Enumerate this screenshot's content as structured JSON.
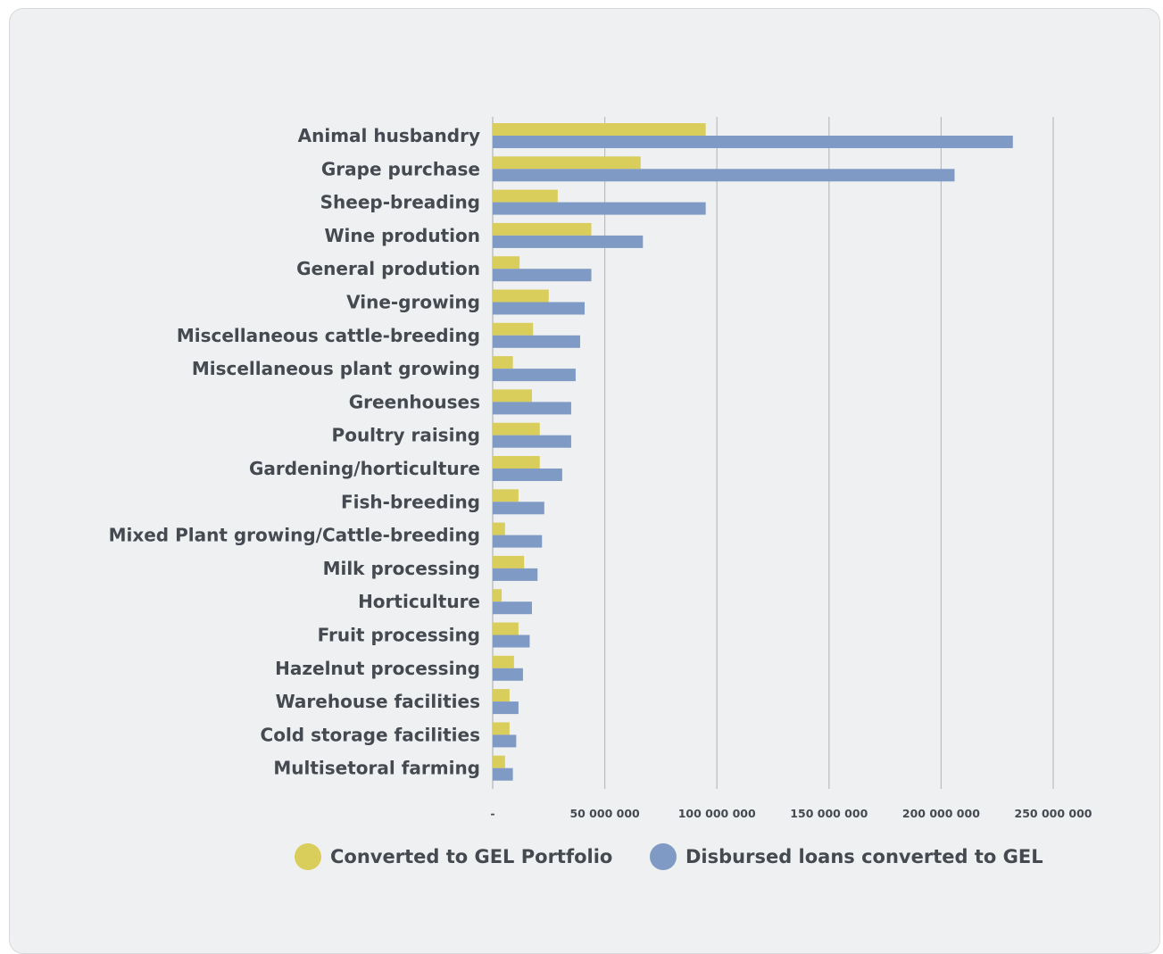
{
  "chart_data": {
    "type": "bar",
    "orientation": "horizontal",
    "title": "",
    "xlabel": "",
    "ylabel": "",
    "categories": [
      "Animal husbandry",
      "Grape purchase",
      "Sheep-breading",
      "Wine prodution",
      "General prodution",
      "Vine-growing",
      "Miscellaneous cattle-breeding",
      "Miscellaneous plant growing",
      "Greenhouses",
      "Poultry raising",
      "Gardening/horticulture",
      "Fish-breeding",
      "Mixed Plant growing/Cattle-breeding",
      "Milk processing",
      "Horticulture",
      "Fruit processing",
      "Hazelnut processing",
      "Warehouse facilities",
      "Cold storage facilities",
      "Multisetoral farming"
    ],
    "series": [
      {
        "name": "Converted to GEL Portfolio",
        "color": "#d9cd5c",
        "values": [
          95000000,
          66000000,
          29000000,
          44000000,
          12000000,
          25000000,
          18000000,
          9000000,
          17500000,
          21000000,
          21000000,
          11500000,
          5500000,
          14000000,
          4000000,
          11500000,
          9500000,
          7500000,
          7500000,
          5500000
        ]
      },
      {
        "name": "Disbursed loans converted to GEL",
        "color": "#7f9ac4",
        "values": [
          232000000,
          206000000,
          95000000,
          67000000,
          44000000,
          41000000,
          39000000,
          37000000,
          35000000,
          35000000,
          31000000,
          23000000,
          22000000,
          20000000,
          17500000,
          16500000,
          13500000,
          11500000,
          10500000,
          9000000
        ]
      }
    ],
    "xlim": [
      0,
      250000000
    ],
    "xticks": [
      0,
      50000000,
      100000000,
      150000000,
      200000000,
      250000000
    ],
    "xtick_labels": [
      "-",
      "50 000 000",
      "100 000 000",
      "150 000 000",
      "200 000 000",
      "250 000 000"
    ],
    "grid": "vertical",
    "legend_position": "bottom"
  },
  "colors": {
    "panel_background": "#eff0f2",
    "grid": "#b9bcc1",
    "text": "#454a51"
  }
}
